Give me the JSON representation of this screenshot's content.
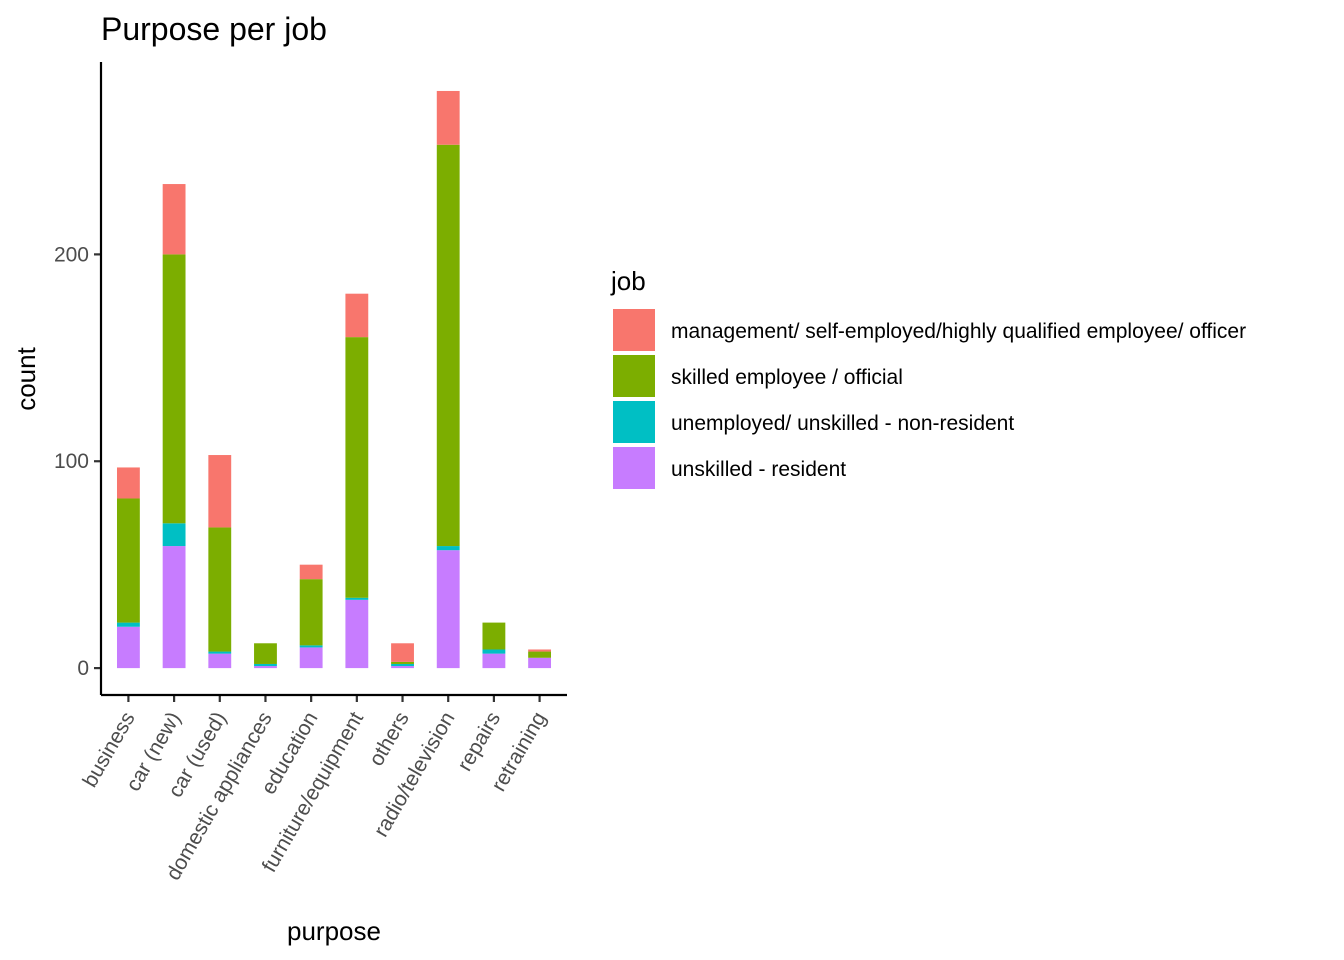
{
  "chart_data": {
    "type": "bar",
    "stacked": true,
    "title": "Purpose per job",
    "xlabel": "purpose",
    "ylabel": "count",
    "ylim": [
      -13,
      293
    ],
    "yticks": [
      0,
      100,
      200
    ],
    "grid": false,
    "legend_position": "right",
    "legend_title": "job",
    "categories": [
      "business",
      "car (new)",
      "car (used)",
      "domestic appliances",
      "education",
      "furniture/equipment",
      "others",
      "radio/television",
      "repairs",
      "retraining"
    ],
    "series": [
      {
        "name": "unskilled - resident",
        "color": "#C77CFF",
        "values": [
          20,
          59,
          7,
          1,
          10,
          33,
          1,
          57,
          7,
          5
        ]
      },
      {
        "name": "unemployed/ unskilled  - non-resident",
        "color": "#00BFC4",
        "values": [
          2,
          11,
          1,
          1,
          1,
          1,
          1,
          2,
          2,
          0
        ]
      },
      {
        "name": "skilled employee / official",
        "color": "#7CAE00",
        "values": [
          60,
          130,
          60,
          10,
          32,
          126,
          1,
          194,
          13,
          3
        ]
      },
      {
        "name": "management/ self-employed/highly qualified employee/ officer",
        "color": "#F8766D",
        "values": [
          15,
          34,
          35,
          0,
          7,
          21,
          9,
          26,
          0,
          1
        ]
      }
    ]
  }
}
